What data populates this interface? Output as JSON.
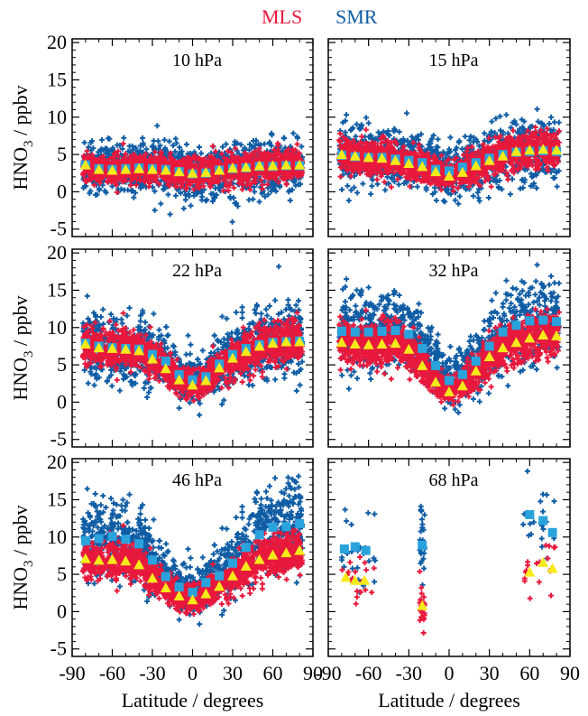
{
  "legend": {
    "mls": {
      "label": "MLS",
      "color": "#e8193c"
    },
    "smr": {
      "label": "SMR",
      "color": "#0e5ca4"
    }
  },
  "colors": {
    "mls_scatter": "#e8193c",
    "smr_scatter": "#0e5ca4",
    "mls_mean": "#f7ea1a",
    "smr_mean": "#2aa3dd"
  },
  "axes": {
    "ylabel_main": "HNO",
    "ylabel_sub": "3",
    "ylabel_tail": " / ppbv",
    "xlabel": "Latitude / degrees",
    "xlim": [
      -90,
      90
    ],
    "ylim": [
      -6,
      20.5
    ],
    "xticks": [
      -90,
      -60,
      -30,
      0,
      30,
      60,
      90
    ],
    "yticks": [
      -5,
      0,
      5,
      10,
      15,
      20
    ]
  },
  "chart_data": [
    {
      "type": "scatter",
      "label": "10 hPa",
      "lat_range": [
        -82,
        82
      ],
      "smr_mean": [
        [
          -80,
          3.6
        ],
        [
          -70,
          3.1
        ],
        [
          -60,
          3.0
        ],
        [
          -50,
          3.1
        ],
        [
          -40,
          3.2
        ],
        [
          -30,
          3.1
        ],
        [
          -20,
          3.0
        ],
        [
          -10,
          2.7
        ],
        [
          0,
          2.4
        ],
        [
          10,
          2.5
        ],
        [
          20,
          2.9
        ],
        [
          30,
          3.1
        ],
        [
          40,
          3.2
        ],
        [
          50,
          3.4
        ],
        [
          60,
          3.4
        ],
        [
          70,
          3.5
        ],
        [
          80,
          3.5
        ]
      ],
      "mls_mean": [
        [
          -80,
          3.6
        ],
        [
          -70,
          3.0
        ],
        [
          -60,
          2.9
        ],
        [
          -50,
          3.0
        ],
        [
          -40,
          3.1
        ],
        [
          -30,
          3.0
        ],
        [
          -20,
          2.9
        ],
        [
          -10,
          2.7
        ],
        [
          0,
          2.5
        ],
        [
          10,
          2.6
        ],
        [
          20,
          2.9
        ],
        [
          30,
          3.2
        ],
        [
          40,
          3.3
        ],
        [
          50,
          3.5
        ],
        [
          60,
          3.5
        ],
        [
          70,
          3.6
        ],
        [
          80,
          3.6
        ]
      ]
    },
    {
      "type": "scatter",
      "label": "15 hPa",
      "lat_range": [
        -82,
        82
      ],
      "smr_mean": [
        [
          -80,
          4.9
        ],
        [
          -70,
          4.7
        ],
        [
          -60,
          4.6
        ],
        [
          -50,
          4.6
        ],
        [
          -40,
          4.4
        ],
        [
          -30,
          4.2
        ],
        [
          -20,
          3.9
        ],
        [
          -10,
          3.0
        ],
        [
          0,
          2.8
        ],
        [
          10,
          3.3
        ],
        [
          20,
          3.9
        ],
        [
          30,
          4.5
        ],
        [
          40,
          5.0
        ],
        [
          50,
          5.3
        ],
        [
          60,
          5.4
        ],
        [
          70,
          5.5
        ],
        [
          80,
          5.4
        ]
      ],
      "mls_mean": [
        [
          -80,
          5.0
        ],
        [
          -70,
          4.8
        ],
        [
          -60,
          4.6
        ],
        [
          -50,
          4.5
        ],
        [
          -40,
          4.2
        ],
        [
          -30,
          3.8
        ],
        [
          -20,
          3.4
        ],
        [
          -10,
          2.7
        ],
        [
          0,
          2.1
        ],
        [
          10,
          2.6
        ],
        [
          20,
          3.5
        ],
        [
          30,
          4.2
        ],
        [
          40,
          4.8
        ],
        [
          50,
          5.4
        ],
        [
          60,
          5.6
        ],
        [
          70,
          5.7
        ],
        [
          80,
          5.6
        ]
      ]
    },
    {
      "type": "scatter",
      "label": "22 hPa",
      "lat_range": [
        -82,
        82
      ],
      "smr_mean": [
        [
          -80,
          7.9
        ],
        [
          -70,
          7.5
        ],
        [
          -60,
          7.3
        ],
        [
          -50,
          7.2
        ],
        [
          -40,
          7.1
        ],
        [
          -30,
          6.4
        ],
        [
          -20,
          5.5
        ],
        [
          -10,
          3.7
        ],
        [
          0,
          3.0
        ],
        [
          10,
          3.4
        ],
        [
          20,
          5.1
        ],
        [
          30,
          6.4
        ],
        [
          40,
          7.2
        ],
        [
          50,
          7.7
        ],
        [
          60,
          8.0
        ],
        [
          70,
          8.1
        ],
        [
          80,
          8.2
        ]
      ],
      "mls_mean": [
        [
          -80,
          7.8
        ],
        [
          -70,
          7.3
        ],
        [
          -60,
          7.2
        ],
        [
          -50,
          7.1
        ],
        [
          -40,
          6.9
        ],
        [
          -30,
          5.8
        ],
        [
          -20,
          4.5
        ],
        [
          -10,
          3.0
        ],
        [
          0,
          2.3
        ],
        [
          10,
          2.9
        ],
        [
          20,
          4.6
        ],
        [
          30,
          5.9
        ],
        [
          40,
          6.8
        ],
        [
          50,
          7.5
        ],
        [
          60,
          7.9
        ],
        [
          70,
          8.1
        ],
        [
          80,
          8.1
        ]
      ]
    },
    {
      "type": "scatter",
      "label": "32 hPa",
      "lat_range": [
        -82,
        82
      ],
      "smr_mean": [
        [
          -80,
          9.5
        ],
        [
          -70,
          9.4
        ],
        [
          -60,
          9.4
        ],
        [
          -50,
          9.5
        ],
        [
          -40,
          9.6
        ],
        [
          -30,
          9.1
        ],
        [
          -20,
          7.2
        ],
        [
          -10,
          4.9
        ],
        [
          0,
          2.9
        ],
        [
          10,
          3.7
        ],
        [
          20,
          5.5
        ],
        [
          30,
          7.5
        ],
        [
          40,
          9.4
        ],
        [
          50,
          10.3
        ],
        [
          60,
          10.9
        ],
        [
          70,
          11.0
        ],
        [
          80,
          10.8
        ]
      ],
      "mls_mean": [
        [
          -80,
          8.0
        ],
        [
          -70,
          7.8
        ],
        [
          -60,
          7.7
        ],
        [
          -50,
          7.8
        ],
        [
          -40,
          7.9
        ],
        [
          -30,
          7.1
        ],
        [
          -20,
          4.9
        ],
        [
          -10,
          2.7
        ],
        [
          0,
          1.4
        ],
        [
          10,
          2.2
        ],
        [
          20,
          4.2
        ],
        [
          30,
          6.1
        ],
        [
          40,
          7.3
        ],
        [
          50,
          8.0
        ],
        [
          60,
          8.6
        ],
        [
          70,
          9.0
        ],
        [
          80,
          8.9
        ]
      ]
    },
    {
      "type": "scatter",
      "label": "46 hPa",
      "lat_range": [
        -82,
        82
      ],
      "smr_mean": [
        [
          -80,
          9.5
        ],
        [
          -70,
          9.8
        ],
        [
          -60,
          10.1
        ],
        [
          -50,
          9.7
        ],
        [
          -40,
          9.1
        ],
        [
          -30,
          6.9
        ],
        [
          -20,
          4.7
        ],
        [
          -10,
          3.3
        ],
        [
          0,
          2.6
        ],
        [
          10,
          3.9
        ],
        [
          20,
          4.8
        ],
        [
          30,
          6.5
        ],
        [
          40,
          8.6
        ],
        [
          50,
          10.3
        ],
        [
          60,
          11.3
        ],
        [
          70,
          11.4
        ],
        [
          80,
          11.8
        ]
      ],
      "mls_mean": [
        [
          -80,
          7.1
        ],
        [
          -70,
          6.9
        ],
        [
          -60,
          7.0
        ],
        [
          -50,
          6.8
        ],
        [
          -40,
          6.3
        ],
        [
          -30,
          4.5
        ],
        [
          -20,
          3.2
        ],
        [
          -10,
          2.1
        ],
        [
          0,
          1.6
        ],
        [
          10,
          2.4
        ],
        [
          20,
          3.4
        ],
        [
          30,
          4.8
        ],
        [
          40,
          6.1
        ],
        [
          50,
          7.0
        ],
        [
          60,
          7.6
        ],
        [
          70,
          7.9
        ],
        [
          80,
          8.2
        ]
      ]
    },
    {
      "type": "scatter",
      "label": "68 hPa",
      "lat_range": [
        -80,
        -55
      ],
      "lat_range_2": [
        55,
        80
      ],
      "lat_range_3": [
        -22,
        -18
      ],
      "smr_mean": [
        [
          -78,
          8.4
        ],
        [
          -70,
          8.7
        ],
        [
          -62,
          8.2
        ],
        [
          -20,
          8.9
        ],
        [
          60,
          13.0
        ],
        [
          70,
          12.2
        ],
        [
          77,
          10.6
        ]
      ],
      "mls_mean": [
        [
          -77,
          4.6
        ],
        [
          -70,
          4.2
        ],
        [
          -63,
          4.2
        ],
        [
          -20,
          0.8
        ],
        [
          60,
          5.3
        ],
        [
          70,
          6.6
        ],
        [
          77,
          5.8
        ]
      ]
    }
  ]
}
